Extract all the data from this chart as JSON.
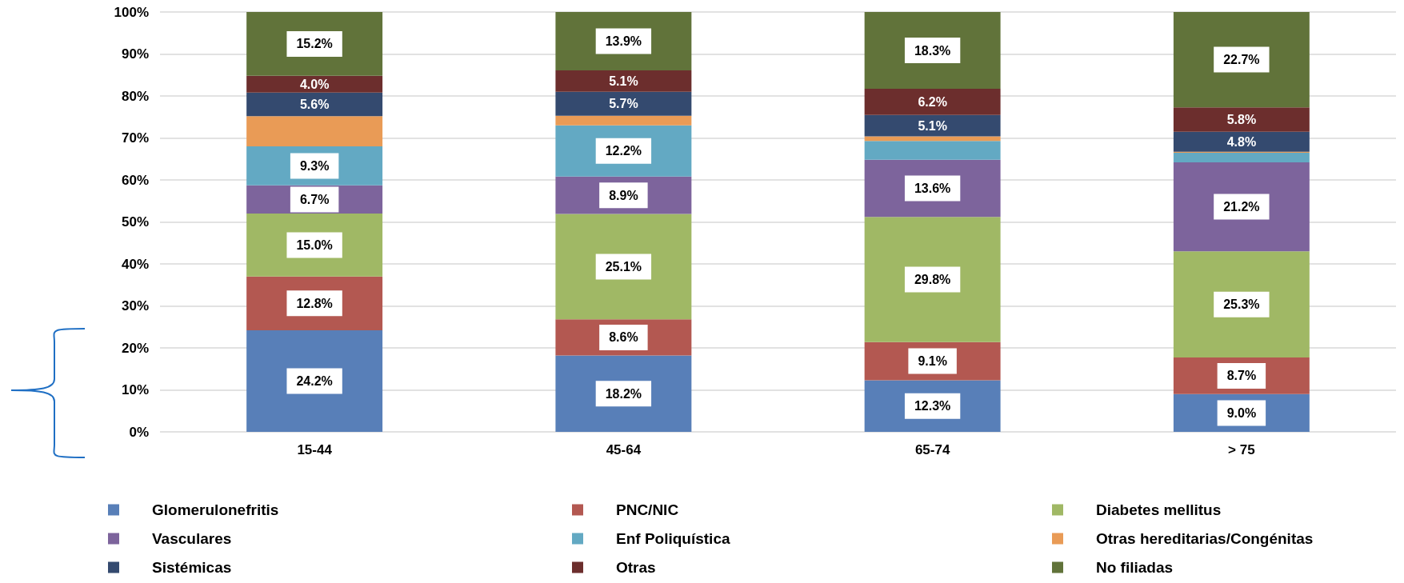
{
  "chart_data": {
    "type": "bar",
    "stacked": true,
    "categories": [
      "15-44",
      "45-64",
      "65-74",
      "> 75"
    ],
    "series": [
      {
        "name": "Glomerulonefritis",
        "color": "#587fb8",
        "values": [
          24.2,
          18.2,
          12.3,
          9.0
        ],
        "value_labels": [
          "24.2%",
          "18.2%",
          "12.3%",
          "9.0%"
        ]
      },
      {
        "name": "PNC/NIC",
        "color": "#b35851",
        "values": [
          12.8,
          8.6,
          9.1,
          8.7
        ],
        "value_labels": [
          "12.8%",
          "8.6%",
          "9.1%",
          "8.7%"
        ]
      },
      {
        "name": "Diabetes mellitus",
        "color": "#a0b865",
        "values": [
          15.0,
          25.1,
          29.8,
          25.3
        ],
        "value_labels": [
          "15.0%",
          "25.1%",
          "29.8%",
          "25.3%"
        ]
      },
      {
        "name": "Vasculares",
        "color": "#7d649c",
        "values": [
          6.7,
          8.9,
          13.6,
          21.2
        ],
        "value_labels": [
          "6.7%",
          "8.9%",
          "13.6%",
          "21.2%"
        ]
      },
      {
        "name": "Enf Poliquística",
        "color": "#63a9c3",
        "values": [
          9.3,
          12.2,
          4.5,
          2.3
        ],
        "value_labels": [
          "9.3%",
          "12.2%",
          null,
          null
        ]
      },
      {
        "name": "Otras hereditarias/Congénitas",
        "color": "#e99b56",
        "values": [
          7.2,
          2.3,
          1.1,
          0.2
        ],
        "value_labels": [
          null,
          null,
          null,
          null
        ]
      },
      {
        "name": "Sistémicas",
        "color": "#344a6f",
        "values": [
          5.6,
          5.7,
          5.1,
          4.8
        ],
        "value_labels": [
          "5.6%",
          "5.7%",
          "5.1%",
          "4.8%"
        ]
      },
      {
        "name": "Otras",
        "color": "#6c2e2d",
        "values": [
          4.0,
          5.1,
          6.2,
          5.8
        ],
        "value_labels": [
          "4.0%",
          "5.1%",
          "6.2%",
          "5.8%"
        ]
      },
      {
        "name": "No filiadas",
        "color": "#61733a",
        "values": [
          15.2,
          13.9,
          18.3,
          22.7
        ],
        "value_labels": [
          "15.2%",
          "13.9%",
          "18.3%",
          "22.7%"
        ]
      }
    ],
    "ylim": [
      0,
      100
    ],
    "yticks": [
      {
        "value": 0,
        "label": "0%"
      },
      {
        "value": 10,
        "label": "10%"
      },
      {
        "value": 20,
        "label": "20%"
      },
      {
        "value": 30,
        "label": "30%"
      },
      {
        "value": 40,
        "label": "40%"
      },
      {
        "value": 50,
        "label": "50%"
      },
      {
        "value": 60,
        "label": "60%"
      },
      {
        "value": 70,
        "label": "70%"
      },
      {
        "value": 80,
        "label": "80%"
      },
      {
        "value": 90,
        "label": "90%"
      },
      {
        "value": 100,
        "label": "100%"
      }
    ],
    "grid": "y",
    "legend": "bottom"
  }
}
